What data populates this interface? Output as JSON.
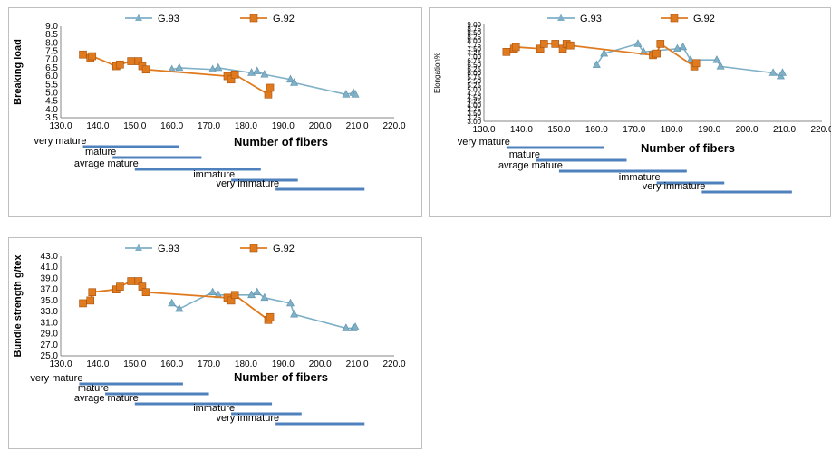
{
  "colors": {
    "g93": "#7fb0c7",
    "g92": "#e07a1f",
    "bar": "#4f81bd",
    "text": "#000000"
  },
  "chart_data": [
    {
      "type": "line",
      "ylabel": "Breaking load",
      "xlabel": "Number of fibers",
      "xlim": [
        130,
        220
      ],
      "ylim": [
        3.5,
        9.0
      ],
      "xticks": [
        "130.0",
        "140.0",
        "150.0",
        "160.0",
        "170.0",
        "180.0",
        "190.0",
        "200.0",
        "210.0",
        "220.0"
      ],
      "yticks": [
        "3.5",
        "4.0",
        "4.5",
        "5.0",
        "5.5",
        "6.0",
        "6.5",
        "7.0",
        "7.5",
        "8.0",
        "8.5",
        "9.0"
      ],
      "legend_position": "top",
      "series": [
        {
          "name": "G.93",
          "marker": "triangle",
          "x": [
            160,
            162,
            171,
            172.5,
            181.5,
            183,
            185,
            192,
            193,
            207,
            209,
            209.5
          ],
          "y": [
            6.4,
            6.5,
            6.4,
            6.5,
            6.2,
            6.3,
            6.1,
            5.8,
            5.6,
            4.9,
            5.0,
            4.9
          ]
        },
        {
          "name": "G.92",
          "marker": "square",
          "x": [
            136,
            138,
            138.5,
            145,
            146,
            149,
            151,
            152,
            153,
            175,
            176,
            177,
            186,
            186.5
          ],
          "y": [
            7.3,
            7.1,
            7.2,
            6.6,
            6.7,
            6.9,
            6.9,
            6.6,
            6.4,
            6.0,
            5.8,
            6.1,
            4.9,
            5.3
          ]
        }
      ],
      "maturity_ranges": [
        {
          "label": "very mature",
          "range": [
            136,
            162
          ]
        },
        {
          "label": "mature",
          "range": [
            144,
            168
          ]
        },
        {
          "label": "avrage mature",
          "range": [
            150,
            184
          ]
        },
        {
          "label": "immature",
          "range": [
            176,
            194
          ]
        },
        {
          "label": "very immature",
          "range": [
            188,
            212
          ]
        }
      ]
    },
    {
      "type": "line",
      "ylabel": "Elongation%",
      "xlabel": "Number of fibers",
      "xlim": [
        130,
        220
      ],
      "ylim": [
        3.0,
        9.0
      ],
      "xticks": [
        "130.0",
        "140.0",
        "150.0",
        "160.0",
        "170.0",
        "180.0",
        "190.0",
        "200.0",
        "210.0",
        "220.0"
      ],
      "yticks": [
        "3.00",
        "3.25",
        "3.50",
        "3.75",
        "4.00",
        "4.25",
        "4.50",
        "4.75",
        "5.00",
        "5.25",
        "5.50",
        "5.75",
        "6.00",
        "6.25",
        "6.50",
        "6.75",
        "7.00",
        "7.25",
        "7.50",
        "7.75",
        "8.00",
        "8.25",
        "8.50",
        "8.75",
        "9.00"
      ],
      "legend_position": "top",
      "series": [
        {
          "name": "G.93",
          "marker": "triangle",
          "x": [
            160,
            162,
            171,
            172.5,
            181.5,
            183,
            185,
            192,
            193,
            207,
            209,
            209.5
          ],
          "y": [
            6.5,
            7.2,
            7.8,
            7.3,
            7.5,
            7.6,
            6.8,
            6.8,
            6.4,
            6.0,
            5.8,
            6.0
          ]
        },
        {
          "name": "G.92",
          "marker": "square",
          "x": [
            136,
            138,
            138.5,
            145,
            146,
            149,
            151,
            152,
            153,
            175,
            176,
            177,
            186,
            186.5
          ],
          "y": [
            7.3,
            7.5,
            7.6,
            7.5,
            7.8,
            7.8,
            7.5,
            7.8,
            7.7,
            7.1,
            7.2,
            7.8,
            6.4,
            6.6
          ]
        }
      ],
      "maturity_ranges": [
        {
          "label": "very mature",
          "range": [
            136,
            162
          ]
        },
        {
          "label": "mature",
          "range": [
            144,
            168
          ]
        },
        {
          "label": "avrage mature",
          "range": [
            150,
            184
          ]
        },
        {
          "label": "immature",
          "range": [
            176,
            194
          ]
        },
        {
          "label": "very immature",
          "range": [
            188,
            212
          ]
        }
      ]
    },
    {
      "type": "line",
      "ylabel": "Bundle strength g/tex",
      "xlabel": "Number of fibers",
      "xlim": [
        130,
        220
      ],
      "ylim": [
        25.0,
        43.0
      ],
      "xticks": [
        "130.0",
        "140.0",
        "150.0",
        "160.0",
        "170.0",
        "180.0",
        "190.0",
        "200.0",
        "210.0",
        "220.0"
      ],
      "yticks": [
        "25.0",
        "27.0",
        "29.0",
        "31.0",
        "33.0",
        "35.0",
        "37.0",
        "39.0",
        "41.0",
        "43.0"
      ],
      "legend_position": "top",
      "series": [
        {
          "name": "G.93",
          "marker": "triangle",
          "x": [
            160,
            162,
            171,
            172.5,
            181.5,
            183,
            185,
            192,
            193,
            207,
            209,
            209.5
          ],
          "y": [
            34.5,
            33.5,
            36.5,
            36.0,
            36.0,
            36.5,
            35.5,
            34.5,
            32.5,
            30.0,
            30.0,
            30.2
          ]
        },
        {
          "name": "G.92",
          "marker": "square",
          "x": [
            136,
            138,
            138.5,
            145,
            146,
            149,
            151,
            152,
            153,
            175,
            176,
            177,
            186,
            186.5
          ],
          "y": [
            34.5,
            35.0,
            36.5,
            37.0,
            37.5,
            38.5,
            38.5,
            37.5,
            36.5,
            35.5,
            35.0,
            36.0,
            31.5,
            32.0
          ]
        }
      ],
      "maturity_ranges": [
        {
          "label": "very mature",
          "range": [
            135,
            163
          ]
        },
        {
          "label": "mature",
          "range": [
            142,
            170
          ]
        },
        {
          "label": "avrage mature",
          "range": [
            150,
            187
          ]
        },
        {
          "label": "immature",
          "range": [
            176,
            195
          ]
        },
        {
          "label": "very immature",
          "range": [
            188,
            212
          ]
        }
      ]
    }
  ]
}
